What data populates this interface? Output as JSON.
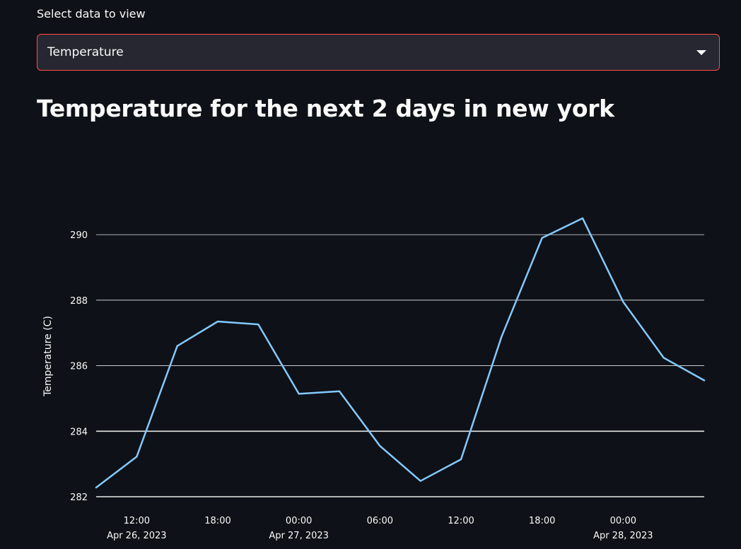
{
  "select": {
    "label": "Select data to view",
    "value": "Temperature"
  },
  "title": "Temperature for the next 2 days in new york",
  "colors": {
    "line": "#83c9ff",
    "grid": "#ffffff",
    "accent_border": "#ff4b4b",
    "background": "#0e1117"
  },
  "chart_data": {
    "type": "line",
    "title": "",
    "xlabel": "",
    "ylabel": "Temperature (C)",
    "grid": true,
    "x": [
      "2023-04-26 09:00",
      "2023-04-26 12:00",
      "2023-04-26 15:00",
      "2023-04-26 18:00",
      "2023-04-26 21:00",
      "2023-04-27 00:00",
      "2023-04-27 03:00",
      "2023-04-27 06:00",
      "2023-04-27 09:00",
      "2023-04-27 12:00",
      "2023-04-27 15:00",
      "2023-04-27 18:00",
      "2023-04-27 21:00",
      "2023-04-28 00:00",
      "2023-04-28 03:00",
      "2023-04-28 06:00"
    ],
    "series": [
      {
        "values": [
          282.28,
          283.22,
          286.6,
          287.35,
          287.26,
          285.14,
          285.22,
          283.55,
          282.48,
          283.14,
          286.88,
          289.9,
          290.5,
          287.95,
          286.24,
          285.55
        ]
      }
    ],
    "ylim": [
      282,
      290.8
    ],
    "yticks": [
      "282",
      "284",
      "286",
      "288",
      "290"
    ],
    "xticks": [
      {
        "line1": "12:00",
        "line2": "Apr 26, 2023",
        "at": "2023-04-26 12:00"
      },
      {
        "line1": "18:00",
        "line2": "",
        "at": "2023-04-26 18:00"
      },
      {
        "line1": "00:00",
        "line2": "Apr 27, 2023",
        "at": "2023-04-27 00:00"
      },
      {
        "line1": "06:00",
        "line2": "",
        "at": "2023-04-27 06:00"
      },
      {
        "line1": "12:00",
        "line2": "",
        "at": "2023-04-27 12:00"
      },
      {
        "line1": "18:00",
        "line2": "",
        "at": "2023-04-27 18:00"
      },
      {
        "line1": "00:00",
        "line2": "Apr 28, 2023",
        "at": "2023-04-28 00:00"
      }
    ]
  }
}
